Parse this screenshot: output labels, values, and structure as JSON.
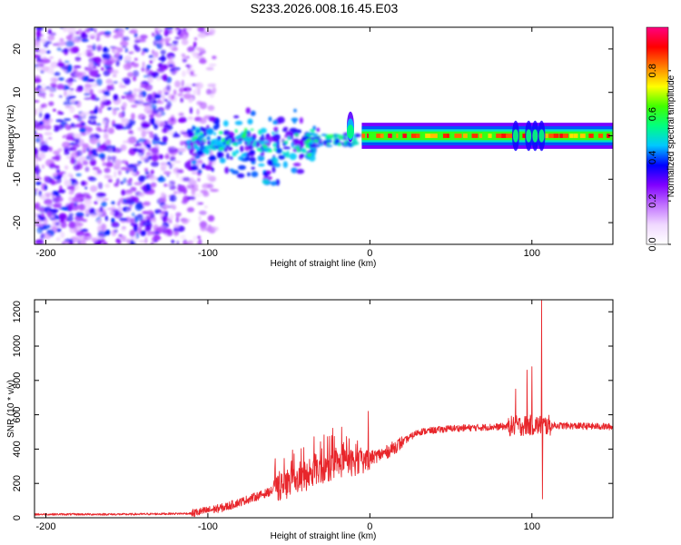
{
  "title": "S233.2026.008.16.45.E03",
  "colors": {
    "snr_line": "#e8262b",
    "axis": "#000000"
  },
  "chart_data": [
    {
      "type": "heatmap",
      "name": "spectrogram",
      "xlabel": "Height of straight line (km)",
      "ylabel": "Frequency (Hz)",
      "xlim": [
        -207,
        150
      ],
      "ylim": [
        -25,
        25
      ],
      "xticks": [
        -200,
        -100,
        0,
        100
      ],
      "yticks": [
        -20,
        -10,
        0,
        10,
        20
      ],
      "colorbar": {
        "label": "Normalized spectral amplitude",
        "range": [
          0.0,
          1.0
        ],
        "ticks": [
          0.0,
          0.2,
          0.4,
          0.6,
          0.8
        ],
        "tick_labels": [
          "0.0",
          "0.2",
          "0.4",
          "0.6",
          "0.8"
        ],
        "colormap": [
          "#ffffff",
          "#f0d8ff",
          "#c070ff",
          "#8000ff",
          "#0000ff",
          "#00c8ff",
          "#00ff80",
          "#40ff00",
          "#ffff00",
          "#ff8000",
          "#ff0000",
          "#ff0080"
        ]
      },
      "features": {
        "noise_region_x": [
          -207,
          -95
        ],
        "noise_amplitude": 0.15,
        "signal_band_x": [
          -110,
          150
        ],
        "signal_center_hz": 0,
        "signal_peak_amplitude": 0.95,
        "feature_at_x": -12,
        "feature_at_x2": 102
      }
    },
    {
      "type": "line",
      "name": "snr",
      "xlabel": "Height of straight line (km)",
      "ylabel": "SNR (10 * v/v)",
      "xlim": [
        -207,
        150
      ],
      "ylim": [
        0,
        1270
      ],
      "xticks": [
        -200,
        -100,
        0,
        100
      ],
      "yticks": [
        0,
        200,
        400,
        600,
        800,
        1000,
        1200
      ],
      "series": [
        {
          "name": "SNR",
          "color": "#e8262b",
          "envelope_x": [
            -207,
            -150,
            -110,
            -90,
            -65,
            -40,
            -20,
            -5,
            10,
            30,
            50,
            80,
            100,
            150
          ],
          "envelope_y": [
            20,
            20,
            25,
            60,
            140,
            230,
            310,
            330,
            380,
            500,
            520,
            530,
            540,
            530
          ],
          "spikes": [
            {
              "x": -1,
              "y": 620
            },
            {
              "x": 90,
              "y": 750
            },
            {
              "x": 97,
              "y": 860
            },
            {
              "x": 100,
              "y": 880
            },
            {
              "x": 106,
              "y": 1265
            },
            {
              "x": 106.5,
              "y": 110
            }
          ]
        }
      ]
    }
  ]
}
